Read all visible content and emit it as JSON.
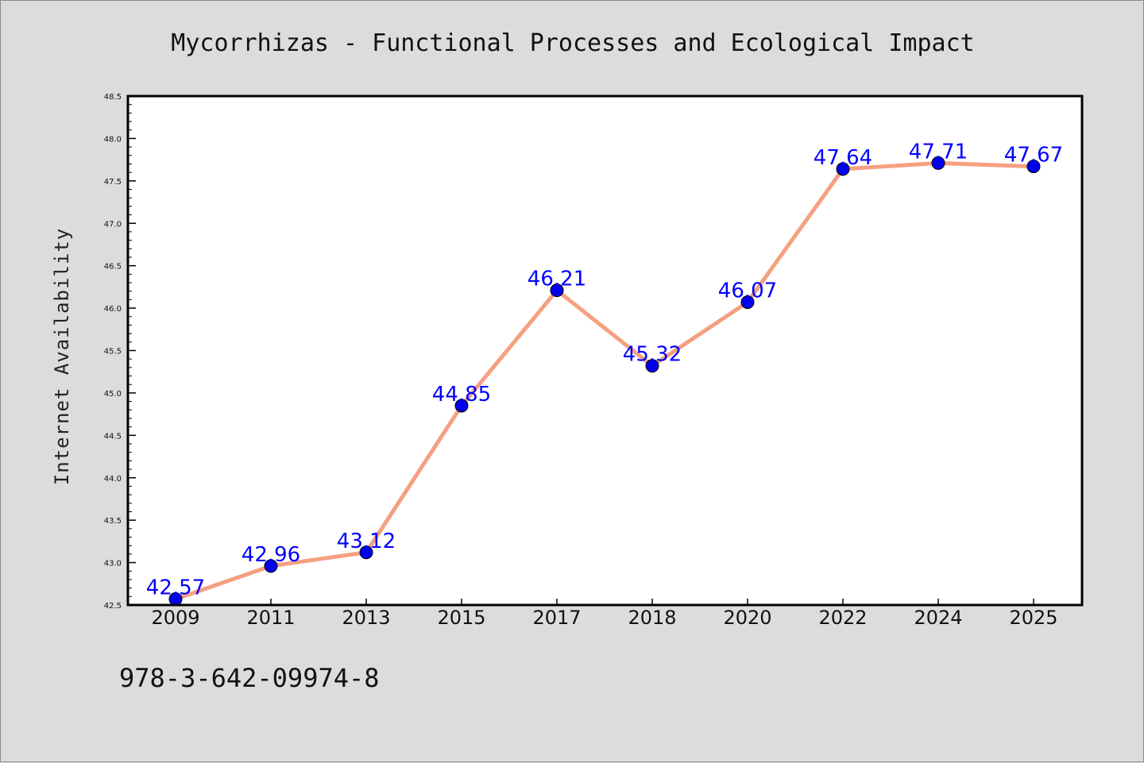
{
  "chart_data": {
    "type": "line",
    "title": "Mycorrhizas - Functional Processes and Ecological Impact",
    "xlabel": "",
    "ylabel": "Internet Availability",
    "categories": [
      "2009",
      "2011",
      "2013",
      "2015",
      "2017",
      "2018",
      "2020",
      "2022",
      "2024",
      "2025"
    ],
    "series": [
      {
        "values": [
          42.57,
          42.96,
          43.12,
          44.85,
          46.21,
          45.32,
          46.07,
          47.64,
          47.71,
          47.67
        ],
        "line_color": "#f5a080",
        "marker_color": "#0000ee",
        "label_color": "#0000ff"
      }
    ],
    "data_labels": [
      "42.57",
      "42.96",
      "43.12",
      "44.85",
      "46.21",
      "45.32",
      "46.07",
      "47.64",
      "47.71",
      "47.67"
    ],
    "ylim": [
      42.5,
      48.5
    ],
    "yticks": [
      "42.5",
      "43.0",
      "43.5",
      "44.0",
      "44.5",
      "45.0",
      "45.5",
      "46.0",
      "46.5",
      "47.0",
      "47.5",
      "48.0",
      "48.5"
    ],
    "grid": false,
    "legend": "none"
  },
  "annotation": "978-3-642-09974-8",
  "colors": {
    "background": "#dcdcdc",
    "plot_background": "#ffffff",
    "axis": "#000000"
  }
}
